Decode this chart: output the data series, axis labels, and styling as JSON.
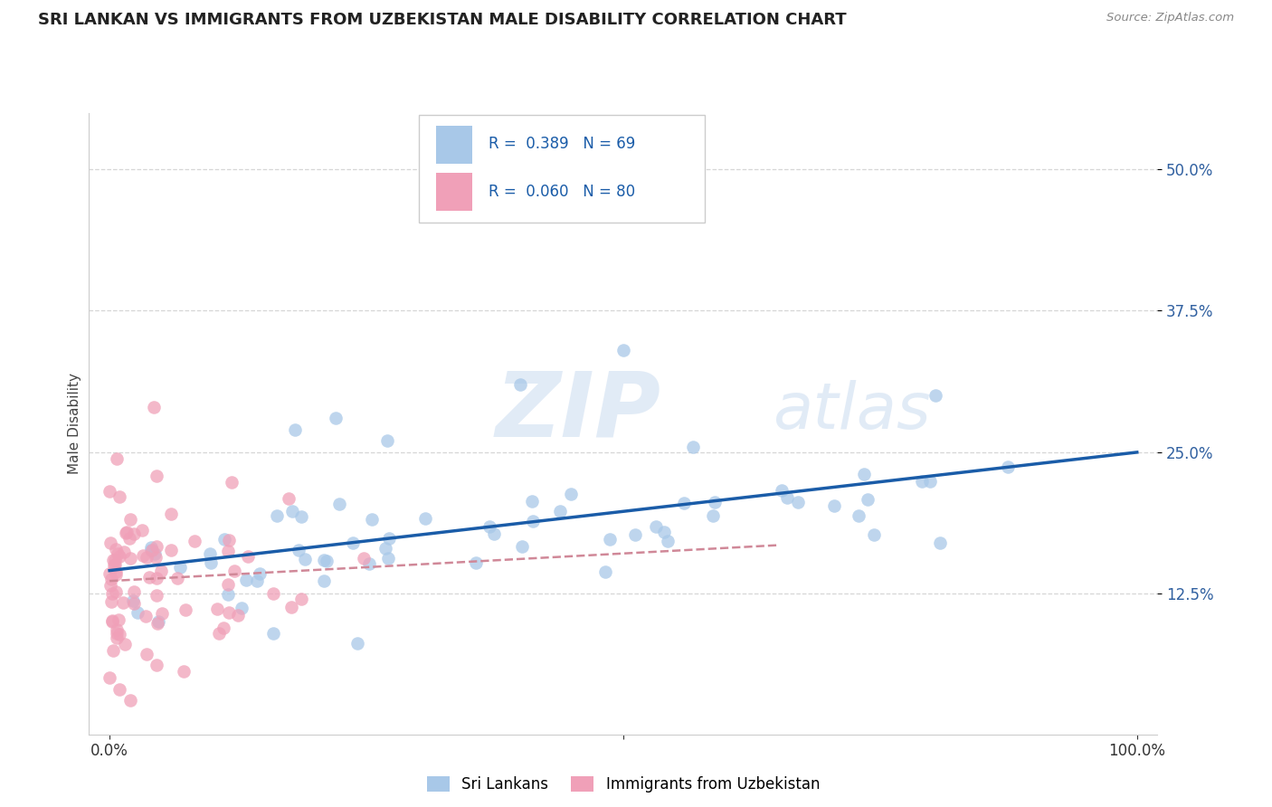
{
  "title": "SRI LANKAN VS IMMIGRANTS FROM UZBEKISTAN MALE DISABILITY CORRELATION CHART",
  "source": "Source: ZipAtlas.com",
  "ylabel": "Male Disability",
  "legend_labels": [
    "Sri Lankans",
    "Immigrants from Uzbekistan"
  ],
  "r_sri": 0.389,
  "n_sri": 69,
  "r_uzb": 0.06,
  "n_uzb": 80,
  "xlim": [
    -0.02,
    1.02
  ],
  "ylim": [
    0.0,
    0.55
  ],
  "yticks": [
    0.125,
    0.25,
    0.375,
    0.5
  ],
  "ytick_labels": [
    "12.5%",
    "25.0%",
    "37.5%",
    "50.0%"
  ],
  "xticks": [
    0.0,
    0.5,
    1.0
  ],
  "xtick_labels": [
    "0.0%",
    "",
    "100.0%"
  ],
  "color_sri": "#a8c8e8",
  "color_uzb": "#f0a0b8",
  "trendline_sri": "#1a5ca8",
  "trendline_uzb": "#d08898",
  "background": "#ffffff",
  "grid_color": "#cccccc",
  "title_color": "#222222",
  "source_color": "#888888",
  "ylabel_color": "#444444",
  "tick_color": "#3060a0"
}
